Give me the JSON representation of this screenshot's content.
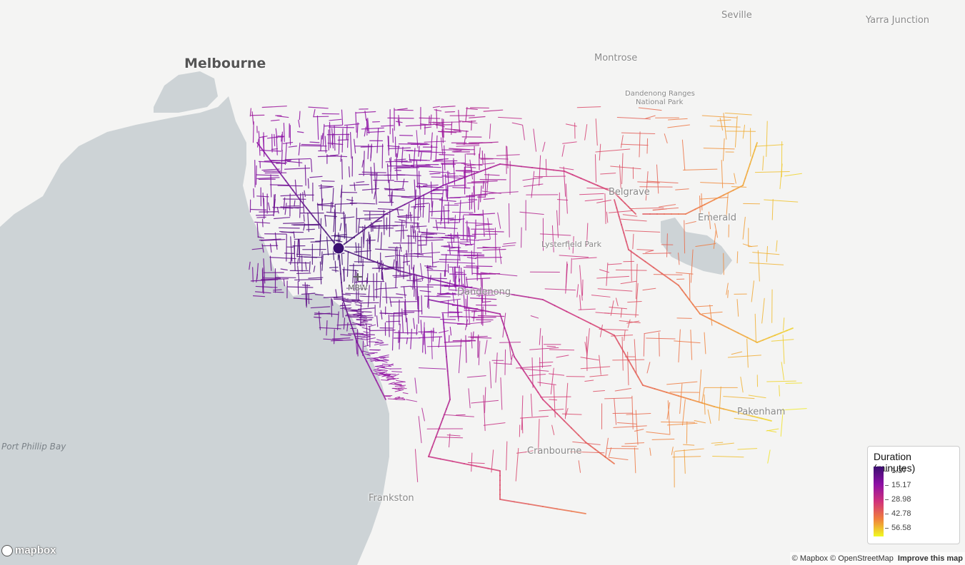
{
  "map": {
    "labels": {
      "melbourne": "Melbourne",
      "seville": "Seville",
      "yarra_junction": "Yarra Junction",
      "montrose": "Montrose",
      "dandenong_ranges": "Dandenong Ranges",
      "national_park": "National Park",
      "belgrave": "Belgrave",
      "emerald": "Emerald",
      "lysterfield_park": "Lysterfield Park",
      "mbw": "MBW",
      "dandenong": "Dandenong",
      "cranbourne": "Cranbourne",
      "pakenham": "Pakenham",
      "frankston": "Frankston",
      "port_phillip_bay": "Port Phillip Bay"
    },
    "origin_marker_color": "#3b0f70",
    "water_color": "#cdd3d6",
    "land_color": "#f4f4f3"
  },
  "legend": {
    "title": "Duration (minutes)",
    "ticks": [
      "1.37",
      "15.17",
      "28.98",
      "42.78",
      "56.58"
    ],
    "colors": [
      "#3b0f70",
      "#8c0fa5",
      "#d0327a",
      "#f07f3c",
      "#f0f921"
    ]
  },
  "attribution": {
    "mapbox": "© Mapbox",
    "osm": "© OpenStreetMap",
    "improve": "Improve this map",
    "logo": "mapbox"
  }
}
